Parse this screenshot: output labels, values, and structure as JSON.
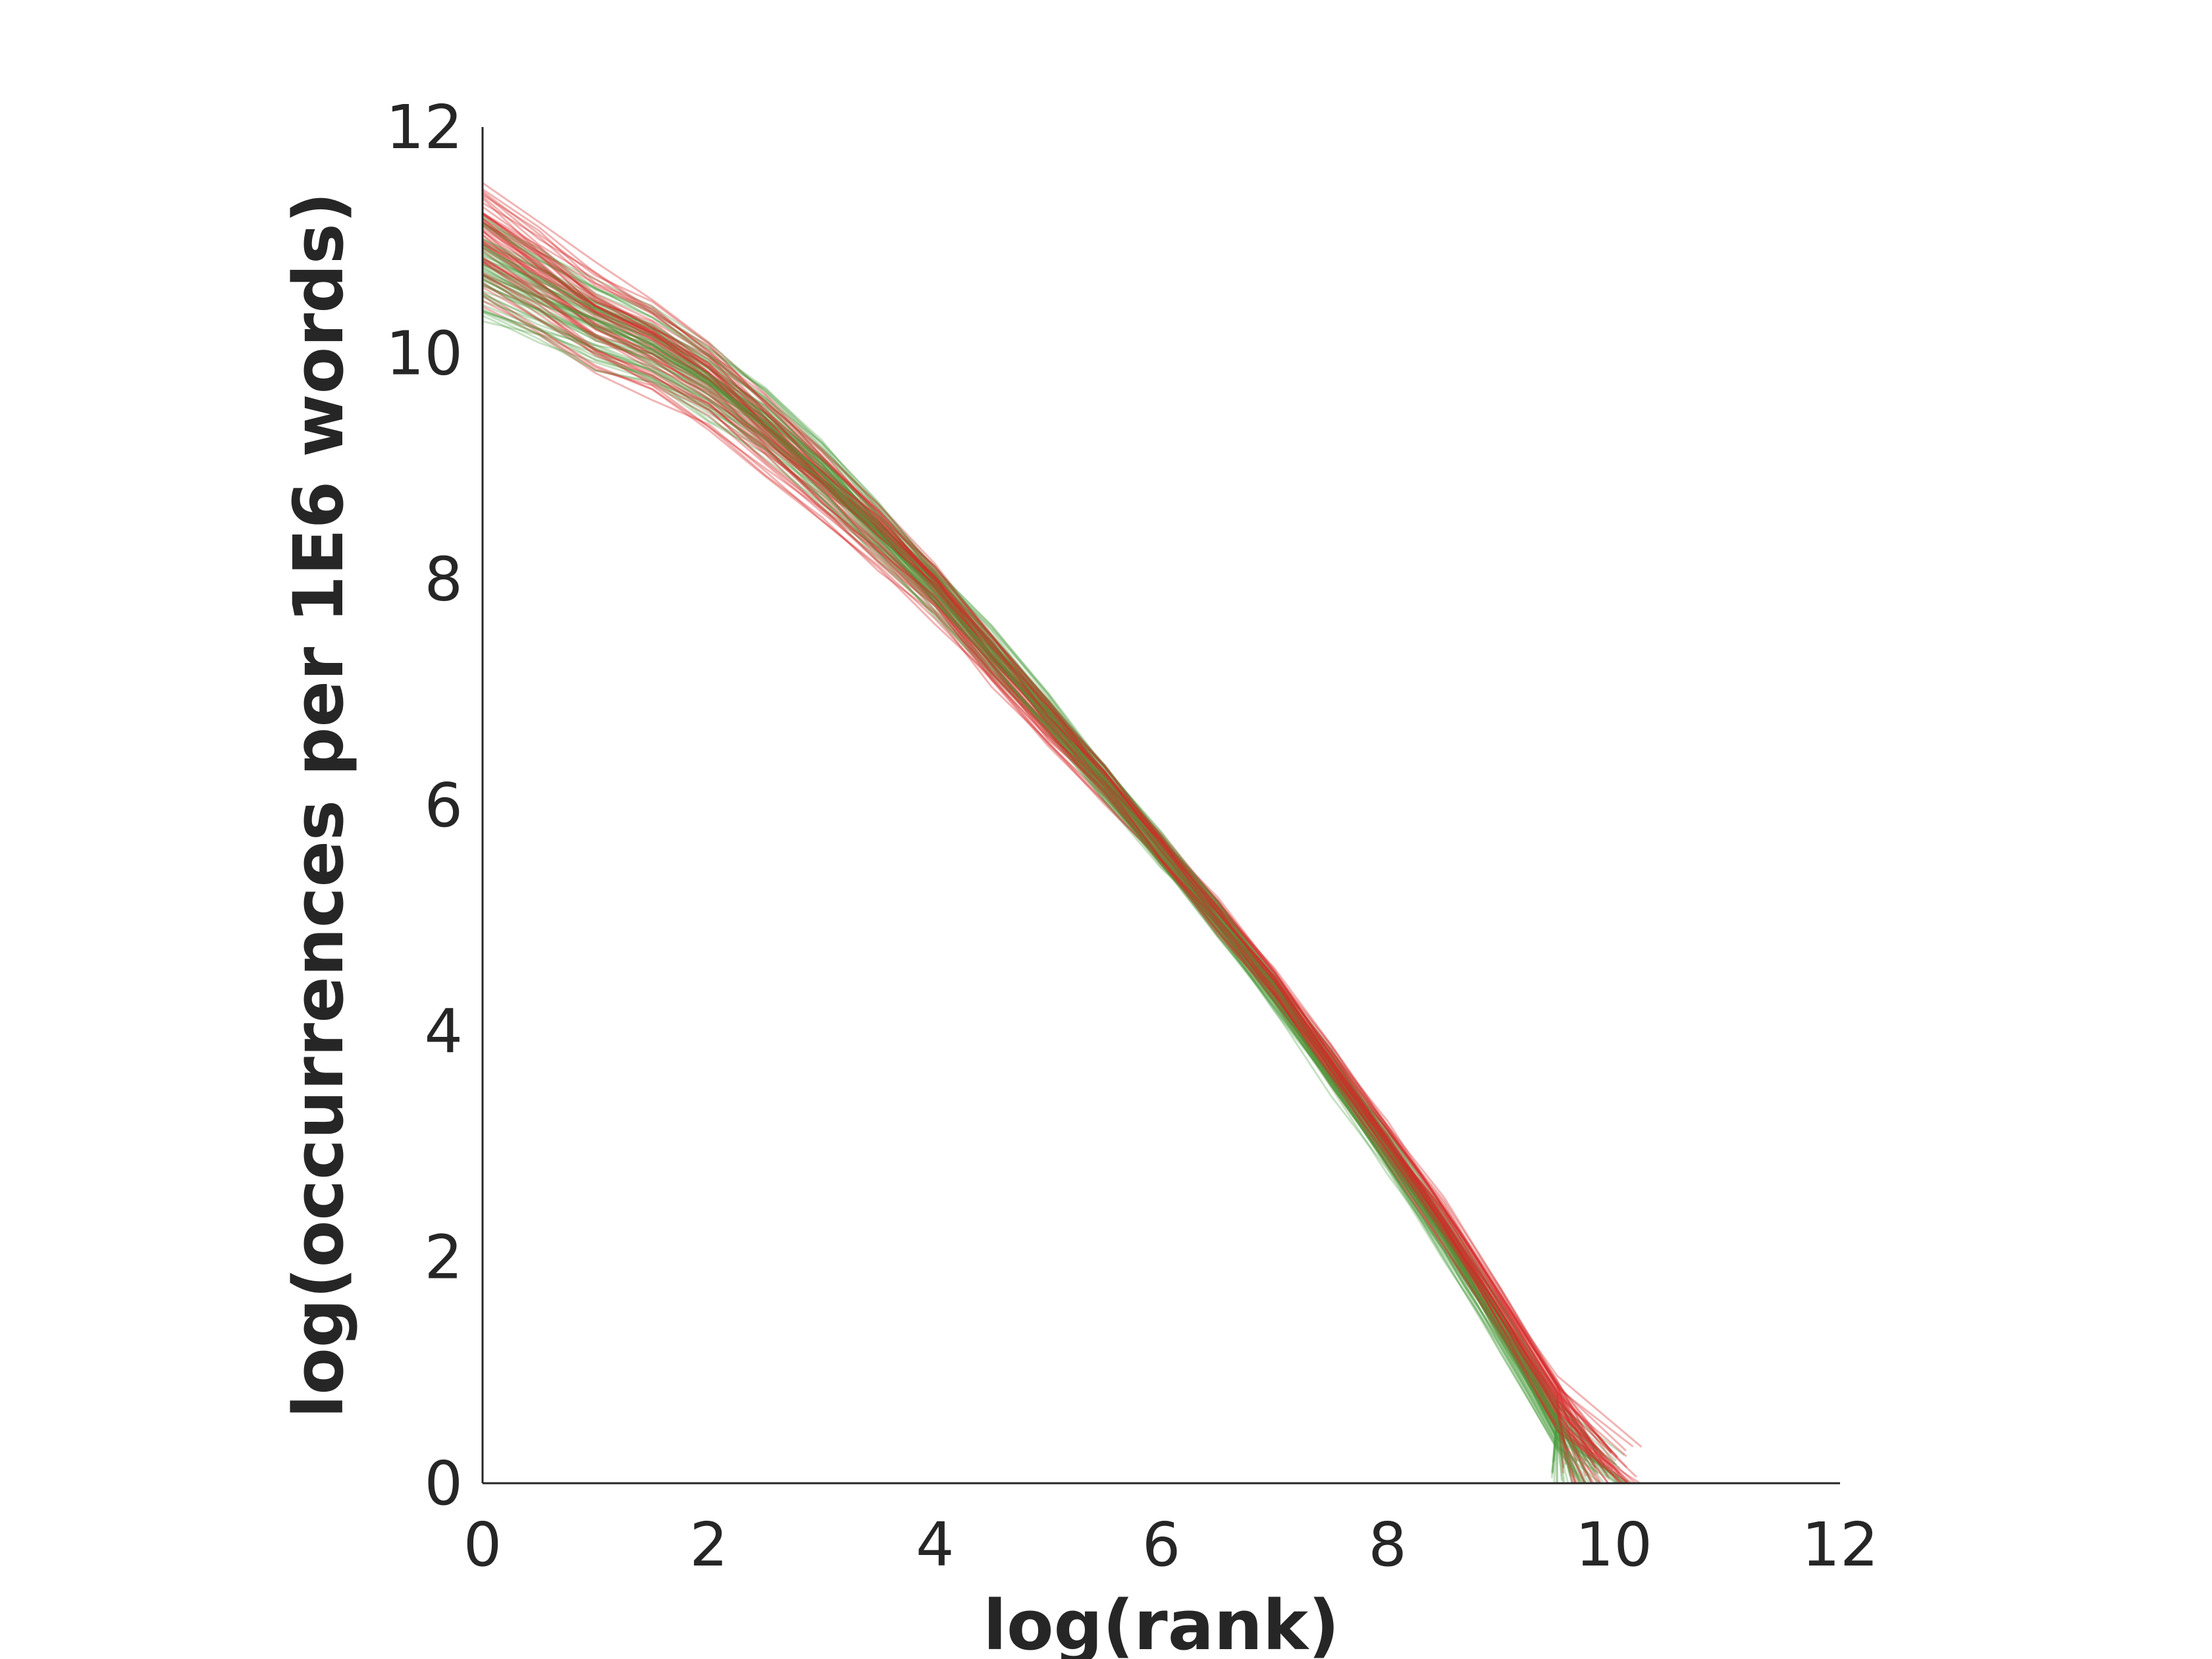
{
  "chart_data": {
    "type": "line",
    "title": "",
    "xlabel": "log(rank)",
    "ylabel": "log(occurrences per 1E6 words)",
    "xlim": [
      0,
      12
    ],
    "ylim": [
      0,
      12
    ],
    "xticks": [
      "0",
      "2",
      "4",
      "6",
      "8",
      "10",
      "12"
    ],
    "yticks": [
      "0",
      "2",
      "4",
      "6",
      "8",
      "10",
      "12"
    ],
    "grid": false,
    "legend": "none",
    "colors": {
      "red_curves": "#d62728",
      "green_curves": "#4a9a3a"
    },
    "series": [
      {
        "color_group": "red",
        "x": [
          0,
          0.5,
          1,
          1.5,
          2,
          2.5,
          3,
          3.5,
          4,
          4.5,
          5,
          5.5,
          6,
          6.5,
          7,
          7.5,
          8,
          8.5,
          9,
          9.5,
          9.9
        ],
        "y": [
          11.0,
          10.65,
          10.3,
          10.05,
          9.75,
          9.3,
          8.85,
          8.4,
          7.9,
          7.3,
          6.75,
          6.2,
          5.6,
          5.0,
          4.4,
          3.7,
          3.0,
          2.3,
          1.5,
          0.7,
          0.05
        ]
      },
      {
        "color_group": "green",
        "x": [
          0,
          0.5,
          1,
          1.5,
          2,
          2.5,
          3,
          3.5,
          4,
          4.5,
          5,
          5.5,
          6,
          6.5,
          7,
          7.5,
          8,
          8.5,
          9,
          9.5,
          9.8
        ],
        "y": [
          10.7,
          10.45,
          10.2,
          10.0,
          9.7,
          9.35,
          8.9,
          8.4,
          7.9,
          7.35,
          6.8,
          6.2,
          5.6,
          5.0,
          4.35,
          3.65,
          2.95,
          2.2,
          1.4,
          0.55,
          0.05
        ]
      }
    ]
  }
}
